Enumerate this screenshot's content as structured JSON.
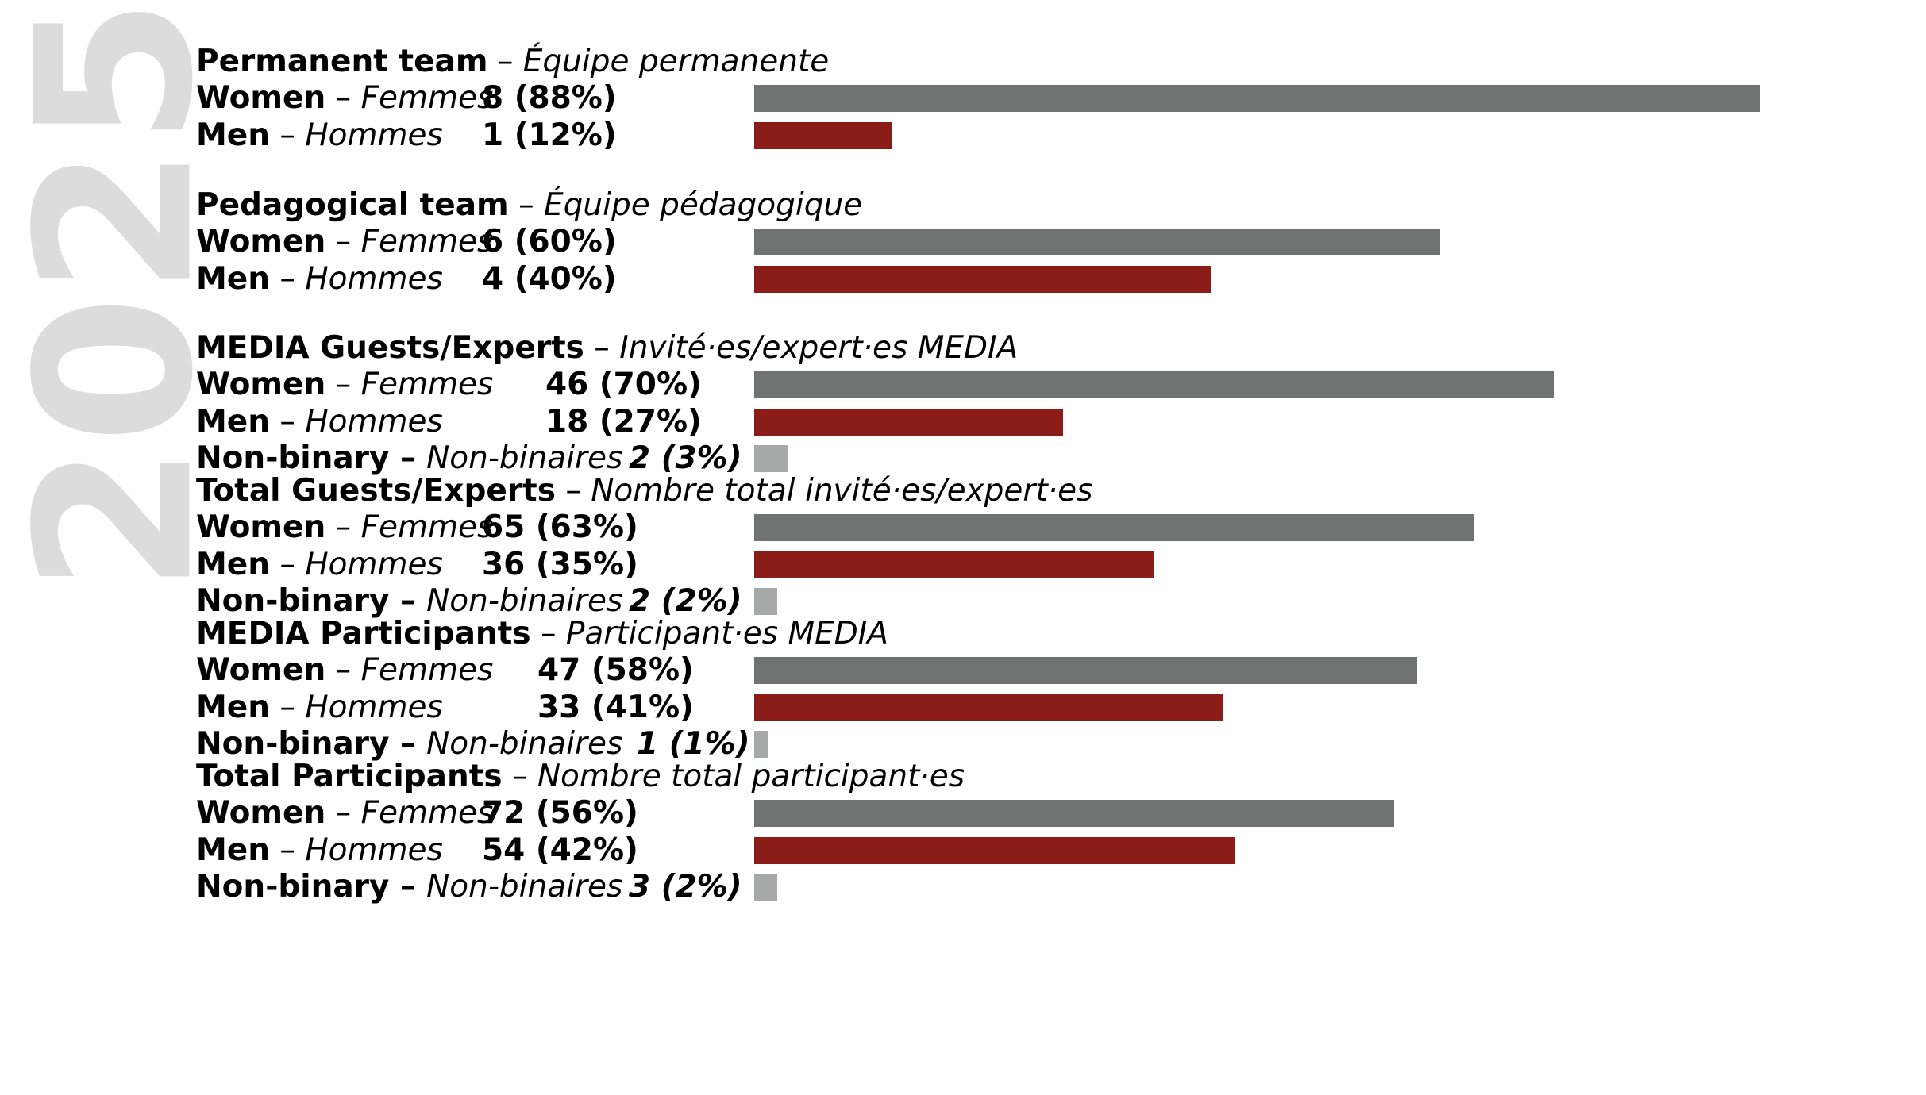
{
  "year_label": "2025",
  "colors": {
    "women": "#6f7472",
    "men": "#8c1c17",
    "nonbinary": "#a7a9a8",
    "year": "#dcdcdc"
  },
  "chart_data": {
    "type": "bar",
    "orientation": "horizontal",
    "groups": [
      {
        "title_en": "Permanent team",
        "sep": " – ",
        "title_fr": "Équipe permanente",
        "rows": [
          {
            "key": "women",
            "label_en": "Women",
            "sep": " – ",
            "label_fr": "Femmes",
            "count": 8,
            "pct": 88,
            "value_text": "8 (88%)"
          },
          {
            "key": "men",
            "label_en": "Men",
            "sep": " – ",
            "label_fr": "Hommes",
            "count": 1,
            "pct": 12,
            "value_text": "1 (12%)"
          }
        ]
      },
      {
        "title_en": "Pedagogical team",
        "sep": " – ",
        "title_fr": "Équipe pédagogique",
        "rows": [
          {
            "key": "women",
            "label_en": "Women",
            "sep": " – ",
            "label_fr": "Femmes",
            "count": 6,
            "pct": 60,
            "value_text": "6 (60%)"
          },
          {
            "key": "men",
            "label_en": "Men",
            "sep": " – ",
            "label_fr": "Hommes",
            "count": 4,
            "pct": 40,
            "value_text": "4 (40%)"
          }
        ]
      },
      {
        "title_en": "MEDIA Guests/Experts",
        "sep": " – ",
        "title_fr": "Invité·es/expert·es MEDIA",
        "rows": [
          {
            "key": "women",
            "label_en": "Women",
            "sep": " – ",
            "label_fr": "Femmes",
            "count": 46,
            "pct": 70,
            "value_text": "46 (70%)"
          },
          {
            "key": "men",
            "label_en": "Men",
            "sep": " – ",
            "label_fr": "Hommes",
            "count": 18,
            "pct": 27,
            "value_text": "18 (27%)"
          },
          {
            "key": "nonbinary",
            "label_en": "Non-binary",
            "sep": " – ",
            "label_fr": "Non-binaires",
            "count": 2,
            "pct": 3,
            "value_text": "2 (3%)"
          }
        ]
      },
      {
        "title_en": "Total Guests/Experts",
        "sep": " – ",
        "title_fr": "Nombre total invité·es/expert·es",
        "rows": [
          {
            "key": "women",
            "label_en": "Women",
            "sep": " – ",
            "label_fr": "Femmes",
            "count": 65,
            "pct": 63,
            "value_text": "65 (63%)"
          },
          {
            "key": "men",
            "label_en": "Men",
            "sep": " – ",
            "label_fr": "Hommes",
            "count": 36,
            "pct": 35,
            "value_text": "36 (35%)"
          },
          {
            "key": "nonbinary",
            "label_en": "Non-binary",
            "sep": " – ",
            "label_fr": "Non-binaires",
            "count": 2,
            "pct": 2,
            "value_text": "2 (2%)"
          }
        ]
      },
      {
        "title_en": "MEDIA Participants",
        "sep": " – ",
        "title_fr": "Participant·es MEDIA",
        "rows": [
          {
            "key": "women",
            "label_en": "Women",
            "sep": " – ",
            "label_fr": "Femmes",
            "count": 47,
            "pct": 58,
            "value_text": "47 (58%)"
          },
          {
            "key": "men",
            "label_en": "Men",
            "sep": " – ",
            "label_fr": "Hommes",
            "count": 33,
            "pct": 41,
            "value_text": "33 (41%)"
          },
          {
            "key": "nonbinary",
            "label_en": "Non-binary",
            "sep": " – ",
            "label_fr": "Non-binaires",
            "count": 1,
            "pct": 1,
            "value_text": "1 (1%)"
          }
        ]
      },
      {
        "title_en": "Total Participants",
        "sep": " – ",
        "title_fr": "Nombre total participant·es",
        "rows": [
          {
            "key": "women",
            "label_en": "Women",
            "sep": " – ",
            "label_fr": "Femmes",
            "count": 72,
            "pct": 56,
            "value_text": "72 (56%)"
          },
          {
            "key": "men",
            "label_en": "Men",
            "sep": " – ",
            "label_fr": "Hommes",
            "count": 54,
            "pct": 42,
            "value_text": "54 (42%)"
          },
          {
            "key": "nonbinary",
            "label_en": "Non-binary",
            "sep": " – ",
            "label_fr": "Non-binaires",
            "count": 3,
            "pct": 2,
            "value_text": "3 (2%)"
          }
        ]
      }
    ]
  }
}
